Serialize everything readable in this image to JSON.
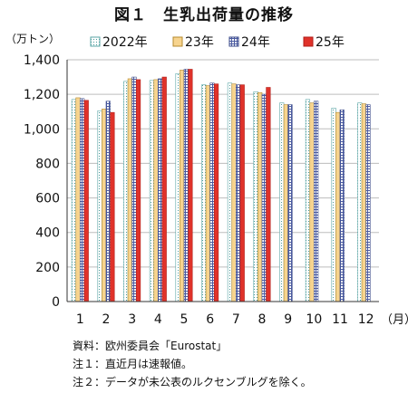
{
  "chart_data": {
    "type": "bar",
    "title": "図１　生乳出荷量の推移",
    "ylabel": "（万トン）",
    "xlabel": "（月）",
    "ylim": [
      0,
      1400
    ],
    "ytick_step": 200,
    "ytick_labels": [
      "0",
      "200",
      "400",
      "600",
      "800",
      "1,000",
      "1,200",
      "1,400"
    ],
    "grid": true,
    "legend": "top",
    "categories": [
      "1",
      "2",
      "3",
      "4",
      "5",
      "6",
      "7",
      "8",
      "9",
      "10",
      "11",
      "12"
    ],
    "series": [
      {
        "name": "2022年",
        "values": [
          1170,
          1105,
          1275,
          1280,
          1320,
          1255,
          1265,
          1215,
          1150,
          1170,
          1120,
          1150
        ],
        "color": "#ffffff",
        "pattern": "dots",
        "stroke": "#5aa6a6"
      },
      {
        "name": "23年",
        "values": [
          1180,
          1115,
          1290,
          1285,
          1340,
          1250,
          1260,
          1210,
          1140,
          1150,
          1095,
          1145
        ],
        "color": "#f7d48e",
        "pattern": "solid",
        "stroke": "#b58a2e"
      },
      {
        "name": "24年",
        "values": [
          1175,
          1160,
          1300,
          1290,
          1345,
          1265,
          1255,
          1200,
          1140,
          1160,
          1110,
          1140
        ],
        "color": "#e8ecf6",
        "pattern": "grid",
        "stroke": "#3a4a8a"
      },
      {
        "name": "25年",
        "values": [
          1165,
          1095,
          1285,
          1300,
          1345,
          1260,
          1255,
          1240,
          null,
          null,
          null,
          null
        ],
        "color": "#e0322a",
        "pattern": "solid",
        "stroke": "#b01e18"
      }
    ]
  },
  "notes": [
    "資料：欧州委員会「Eurostat」",
    "注１：直近月は速報値。",
    "注２：データが未公表のルクセンブルグを除く。"
  ]
}
